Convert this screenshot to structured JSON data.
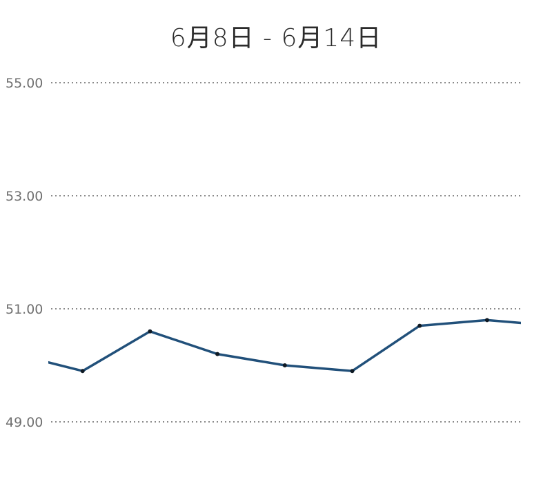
{
  "chart_data": {
    "type": "line",
    "title": "6月8日 - 6月14日",
    "xlabel": "",
    "ylabel": "",
    "ylim": [
      49,
      55
    ],
    "yticks": [
      "49.00",
      "51.00",
      "53.00",
      "55.00"
    ],
    "ytick_values": [
      49,
      51,
      53,
      55
    ],
    "grid": true,
    "colors": {
      "line": "#21507a",
      "points": "#0f1a24",
      "grid": "#8a8a8a"
    },
    "series": [
      {
        "values": [
          50.2,
          49.9,
          50.6,
          50.2,
          50.0,
          49.9,
          50.7,
          50.8,
          50.7
        ]
      }
    ]
  }
}
